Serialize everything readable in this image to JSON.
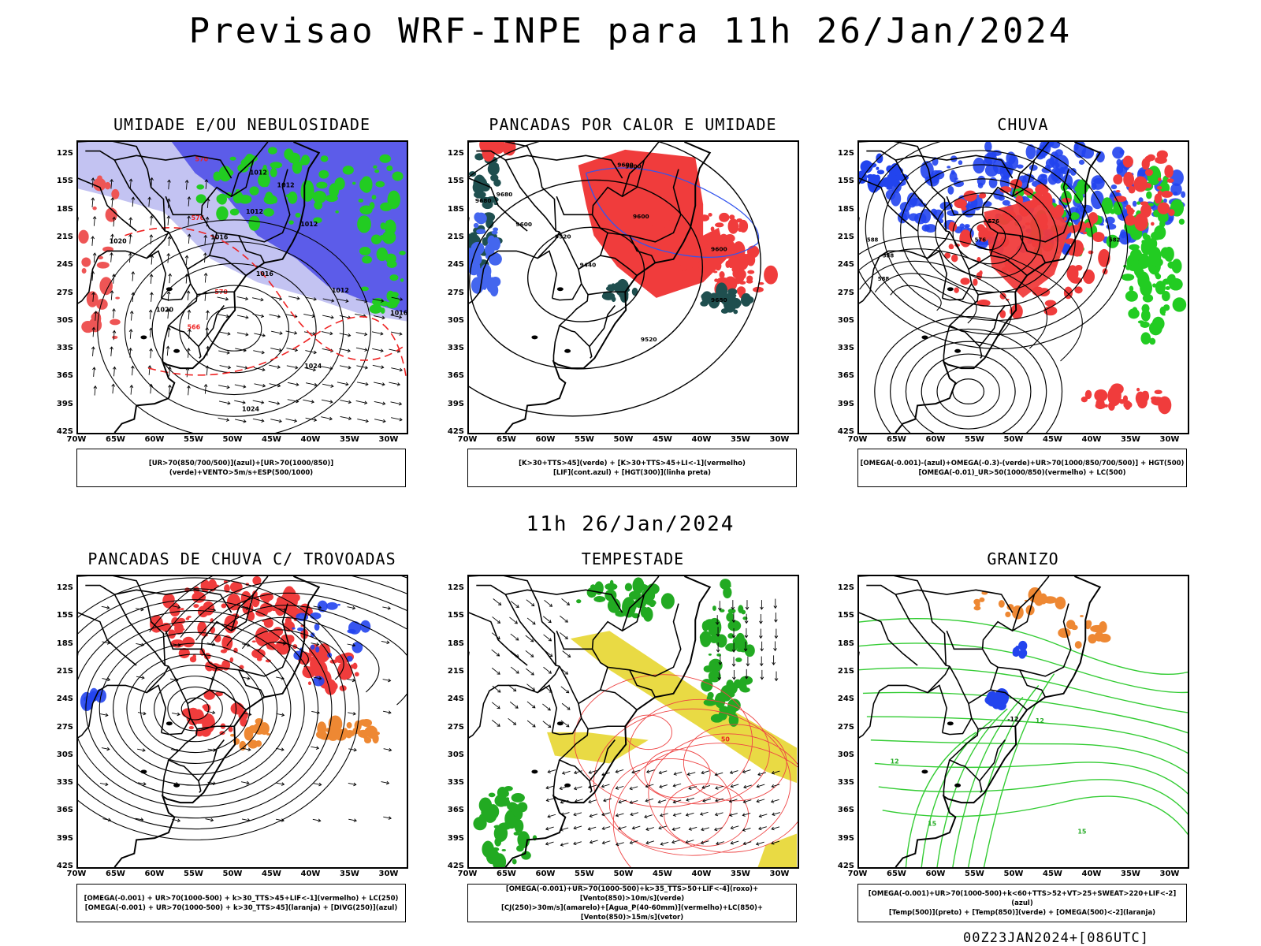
{
  "header": {
    "title": "Previsao WRF-INPE  para 11h 26/Jan/2024",
    "mid_title": "11h 26/Jan/2024",
    "footer": "00Z23JAN2024+[086UTC]"
  },
  "axes": {
    "lat_labels": [
      "12S",
      "15S",
      "18S",
      "21S",
      "24S",
      "27S",
      "30S",
      "33S",
      "36S",
      "39S",
      "42S"
    ],
    "lon_labels": [
      "70W",
      "65W",
      "60W",
      "55W",
      "50W",
      "45W",
      "40W",
      "35W",
      "30W"
    ]
  },
  "colors": {
    "blue_humidity": "#4a4ae8",
    "light_blue": "#b8b8f0",
    "green": "#22cc22",
    "red": "#f03c3c",
    "dark_teal": "#1f4f4f",
    "yellow": "#e8d83a",
    "orange": "#ee8833"
  },
  "panels": [
    {
      "id": "umidade",
      "title": "UMIDADE E/OU NEBULOSIDADE",
      "legend": [
        "[UR>70(850/700/500)](azul)+[UR>70(1000/850)](verde)+VENTO>5m/s+ESP(500/1000)"
      ],
      "labels": [
        "1012",
        "1012",
        "1012",
        "1012",
        "1012",
        "1016",
        "1016",
        "1020",
        "1024",
        "1024",
        "1016",
        "570",
        "576",
        "570",
        "566",
        "1020"
      ]
    },
    {
      "id": "pancadas-calor",
      "title": "PANCADAS POR CALOR E UMIDADE",
      "legend": [
        "[K>30+TTS>45](verde) + [K>30+TTS>45+LI<-1](vermelho)",
        "[LIF](cont.azul) + [HGT(300)](linha preta)"
      ],
      "labels": [
        "9680",
        "9680",
        "9600",
        "9600",
        "9520",
        "9440",
        "9520",
        "9600",
        "9600",
        "9680",
        "9600"
      ]
    },
    {
      "id": "chuva",
      "title": "CHUVA",
      "legend": [
        "[OMEGA(-0.001)-(azul)+OMEGA(-0.3)-(verde)+UR>70(1000/850/700/500)] + HGT(500)",
        "[OMEGA(-0.01)_UR>50(1000/850)(vermelho) + LC(500)"
      ],
      "labels": [
        "576",
        "576",
        "588",
        "588",
        "588",
        "582"
      ]
    },
    {
      "id": "pancadas-trovoadas",
      "title": "PANCADAS DE CHUVA C/ TROVOADAS",
      "legend": [
        "[OMEGA(-0.001) + UR>70(1000-500) + k>30_TTS>45+LIF<-1](vermelho) + LC(250)",
        "[OMEGA(-0.001) + UR>70(1000-500) + k>30_TTS>45](laranja) + [DIVG(250)](azul)"
      ],
      "labels": []
    },
    {
      "id": "tempestade",
      "title": "TEMPESTADE",
      "legend": [
        "[OMEGA(-0.001)+UR>70(1000-500)+k>35_TTS>50+LIF<-4](roxo)+[Vento(850)>10m/s](verde)",
        "[CJ(250)>30m/s](amarelo)+[Agua_P(40-60mm)](vermelho)+LC(850)+[Vento(850)>15m/s](vetor)"
      ],
      "labels": [
        "50"
      ]
    },
    {
      "id": "granizo",
      "title": "GRANIZO",
      "legend": [
        "[OMEGA(-0.001)+UR>70(1000-500)+k<60+TTS>52+VT>25+SWEAT>220+LIF<-2](azul)",
        "[Temp(500)](preto) + [Temp(850)](verde) + [OMEGA(500)<-2](laranja)"
      ],
      "labels": [
        "12",
        "12",
        "15",
        "15",
        "-12"
      ]
    }
  ]
}
